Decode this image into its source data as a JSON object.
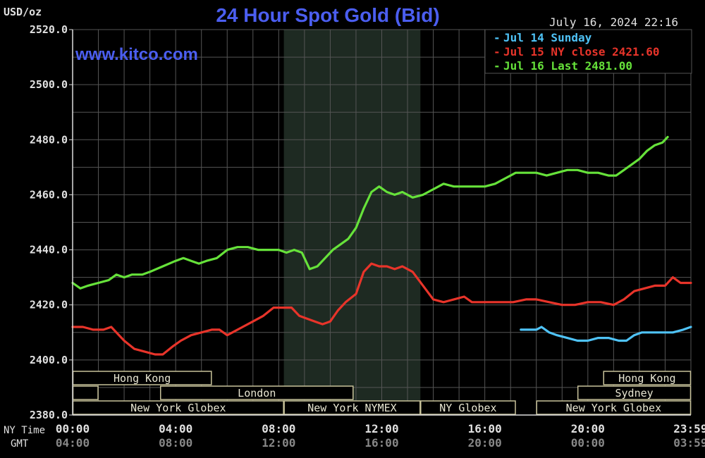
{
  "header": {
    "unit_label": "USD/oz",
    "title": "24 Hour Spot Gold (Bid)",
    "timestamp": "July 16, 2024 22:16",
    "watermark": "www.kitco.com"
  },
  "legend": {
    "items": [
      {
        "label": "Jul 14 Sunday",
        "color": "#4fc3f7"
      },
      {
        "label": "Jul 15 NY close 2421.60",
        "color": "#e8342a"
      },
      {
        "label": "Jul 16 Last 2481.00",
        "color": "#66e23a"
      }
    ]
  },
  "colors": {
    "background": "#000000",
    "grid": "#555555",
    "title": "#4b5ef0",
    "axis_text": "#e0e0e0",
    "gmt_text": "#888888",
    "shade": "#1e2a22",
    "session_border": "#c8c29a",
    "session_text": "#e8e6d2"
  },
  "chart_data": {
    "type": "line",
    "title": "24 Hour Spot Gold (Bid)",
    "ylabel": "USD/oz",
    "ylim": [
      2380,
      2520
    ],
    "yticks": [
      2520,
      2500,
      2480,
      2460,
      2440,
      2420,
      2400,
      2380
    ],
    "ytick_labels": [
      "2520.0",
      "2500.0",
      "2480.0",
      "2460.0",
      "2440.0",
      "2420.0",
      "2400.0",
      "2380.0"
    ],
    "xlim": [
      0,
      24
    ],
    "xticks": [
      0,
      4,
      8,
      12,
      16,
      20,
      23.983
    ],
    "xtick_labels_ny": [
      "00:00",
      "04:00",
      "08:00",
      "12:00",
      "16:00",
      "20:00",
      "23:59"
    ],
    "xtick_labels_gmt": [
      "04:00",
      "08:00",
      "12:00",
      "16:00",
      "20:00",
      "00:00",
      "03:59"
    ],
    "row_labels": [
      "NY Time",
      "GMT"
    ],
    "grid": true,
    "legend_position": "top-right",
    "shaded_range": [
      8.2,
      13.5
    ],
    "series": [
      {
        "name": "Jul 14 Sunday",
        "color": "#4fc3f7",
        "points": [
          [
            17.4,
            2411
          ],
          [
            18.0,
            2411
          ],
          [
            18.2,
            2412
          ],
          [
            18.5,
            2410
          ],
          [
            18.8,
            2409
          ],
          [
            19.2,
            2408
          ],
          [
            19.6,
            2407
          ],
          [
            20.0,
            2407
          ],
          [
            20.4,
            2408
          ],
          [
            20.8,
            2408
          ],
          [
            21.2,
            2407
          ],
          [
            21.5,
            2407
          ],
          [
            21.8,
            2409
          ],
          [
            22.1,
            2410
          ],
          [
            22.5,
            2410
          ],
          [
            22.9,
            2410
          ],
          [
            23.3,
            2410
          ],
          [
            23.7,
            2411
          ],
          [
            24.0,
            2412
          ]
        ]
      },
      {
        "name": "Jul 15 NY close 2421.60",
        "color": "#e8342a",
        "points": [
          [
            0.0,
            2412
          ],
          [
            0.4,
            2412
          ],
          [
            0.8,
            2411
          ],
          [
            1.2,
            2411
          ],
          [
            1.5,
            2412
          ],
          [
            1.7,
            2410
          ],
          [
            2.0,
            2407
          ],
          [
            2.4,
            2404
          ],
          [
            2.8,
            2403
          ],
          [
            3.2,
            2402
          ],
          [
            3.5,
            2402
          ],
          [
            3.9,
            2405
          ],
          [
            4.2,
            2407
          ],
          [
            4.6,
            2409
          ],
          [
            5.0,
            2410
          ],
          [
            5.4,
            2411
          ],
          [
            5.7,
            2411
          ],
          [
            6.0,
            2409
          ],
          [
            6.2,
            2410
          ],
          [
            6.6,
            2412
          ],
          [
            7.0,
            2414
          ],
          [
            7.4,
            2416
          ],
          [
            7.8,
            2419
          ],
          [
            8.2,
            2419
          ],
          [
            8.5,
            2419
          ],
          [
            8.8,
            2416
          ],
          [
            9.1,
            2415
          ],
          [
            9.4,
            2414
          ],
          [
            9.7,
            2413
          ],
          [
            10.0,
            2414
          ],
          [
            10.3,
            2418
          ],
          [
            10.6,
            2421
          ],
          [
            11.0,
            2424
          ],
          [
            11.3,
            2432
          ],
          [
            11.6,
            2435
          ],
          [
            11.9,
            2434
          ],
          [
            12.2,
            2434
          ],
          [
            12.5,
            2433
          ],
          [
            12.8,
            2434
          ],
          [
            13.2,
            2432
          ],
          [
            13.6,
            2427
          ],
          [
            14.0,
            2422
          ],
          [
            14.4,
            2421
          ],
          [
            14.8,
            2422
          ],
          [
            15.2,
            2423
          ],
          [
            15.5,
            2421
          ],
          [
            15.9,
            2421
          ],
          [
            16.3,
            2421
          ],
          [
            16.7,
            2421
          ],
          [
            17.1,
            2421
          ],
          [
            17.6,
            2422
          ],
          [
            18.0,
            2422
          ],
          [
            18.5,
            2421
          ],
          [
            19.0,
            2420
          ],
          [
            19.5,
            2420
          ],
          [
            20.0,
            2421
          ],
          [
            20.5,
            2421
          ],
          [
            21.0,
            2420
          ],
          [
            21.4,
            2422
          ],
          [
            21.8,
            2425
          ],
          [
            22.2,
            2426
          ],
          [
            22.6,
            2427
          ],
          [
            23.0,
            2427
          ],
          [
            23.3,
            2430
          ],
          [
            23.6,
            2428
          ],
          [
            24.0,
            2428
          ]
        ]
      },
      {
        "name": "Jul 16 Last 2481.00",
        "color": "#66e23a",
        "points": [
          [
            0.0,
            2428
          ],
          [
            0.3,
            2426
          ],
          [
            0.6,
            2427
          ],
          [
            1.0,
            2428
          ],
          [
            1.4,
            2429
          ],
          [
            1.7,
            2431
          ],
          [
            2.0,
            2430
          ],
          [
            2.3,
            2431
          ],
          [
            2.7,
            2431
          ],
          [
            3.0,
            2432
          ],
          [
            3.5,
            2434
          ],
          [
            4.0,
            2436
          ],
          [
            4.3,
            2437
          ],
          [
            4.6,
            2436
          ],
          [
            4.9,
            2435
          ],
          [
            5.2,
            2436
          ],
          [
            5.6,
            2437
          ],
          [
            6.0,
            2440
          ],
          [
            6.4,
            2441
          ],
          [
            6.8,
            2441
          ],
          [
            7.2,
            2440
          ],
          [
            7.6,
            2440
          ],
          [
            8.0,
            2440
          ],
          [
            8.3,
            2439
          ],
          [
            8.6,
            2440
          ],
          [
            8.9,
            2439
          ],
          [
            9.2,
            2433
          ],
          [
            9.5,
            2434
          ],
          [
            9.8,
            2437
          ],
          [
            10.1,
            2440
          ],
          [
            10.4,
            2442
          ],
          [
            10.7,
            2444
          ],
          [
            11.0,
            2448
          ],
          [
            11.3,
            2455
          ],
          [
            11.6,
            2461
          ],
          [
            11.9,
            2463
          ],
          [
            12.2,
            2461
          ],
          [
            12.5,
            2460
          ],
          [
            12.8,
            2461
          ],
          [
            13.2,
            2459
          ],
          [
            13.6,
            2460
          ],
          [
            14.0,
            2462
          ],
          [
            14.4,
            2464
          ],
          [
            14.8,
            2463
          ],
          [
            15.2,
            2463
          ],
          [
            15.6,
            2463
          ],
          [
            16.0,
            2463
          ],
          [
            16.4,
            2464
          ],
          [
            16.8,
            2466
          ],
          [
            17.2,
            2468
          ],
          [
            17.6,
            2468
          ],
          [
            18.0,
            2468
          ],
          [
            18.4,
            2467
          ],
          [
            18.8,
            2468
          ],
          [
            19.2,
            2469
          ],
          [
            19.6,
            2469
          ],
          [
            20.0,
            2468
          ],
          [
            20.4,
            2468
          ],
          [
            20.8,
            2467
          ],
          [
            21.1,
            2467
          ],
          [
            21.4,
            2469
          ],
          [
            21.7,
            2471
          ],
          [
            22.0,
            2473
          ],
          [
            22.3,
            2476
          ],
          [
            22.6,
            2478
          ],
          [
            22.9,
            2479
          ],
          [
            23.1,
            2481
          ]
        ]
      }
    ]
  },
  "sessions": [
    {
      "label": "Hong Kong",
      "start": 0.0,
      "end": 5.4,
      "row": 0
    },
    {
      "label": "",
      "start": 0.0,
      "end": 1.0,
      "row": 1
    },
    {
      "label": "London",
      "start": 3.4,
      "end": 10.9,
      "row": 1
    },
    {
      "label": "New York Globex",
      "start": 0.0,
      "end": 8.2,
      "row": 2
    },
    {
      "label": "New York NYMEX",
      "start": 8.2,
      "end": 13.5,
      "row": 2
    },
    {
      "label": "NY Globex",
      "start": 13.5,
      "end": 17.2,
      "row": 2
    },
    {
      "label": "Hong Kong",
      "start": 20.6,
      "end": 24.0,
      "row": 0
    },
    {
      "label": "Sydney",
      "start": 19.6,
      "end": 24.0,
      "row": 1
    },
    {
      "label": "New York Globex",
      "start": 18.0,
      "end": 24.0,
      "row": 2
    }
  ]
}
